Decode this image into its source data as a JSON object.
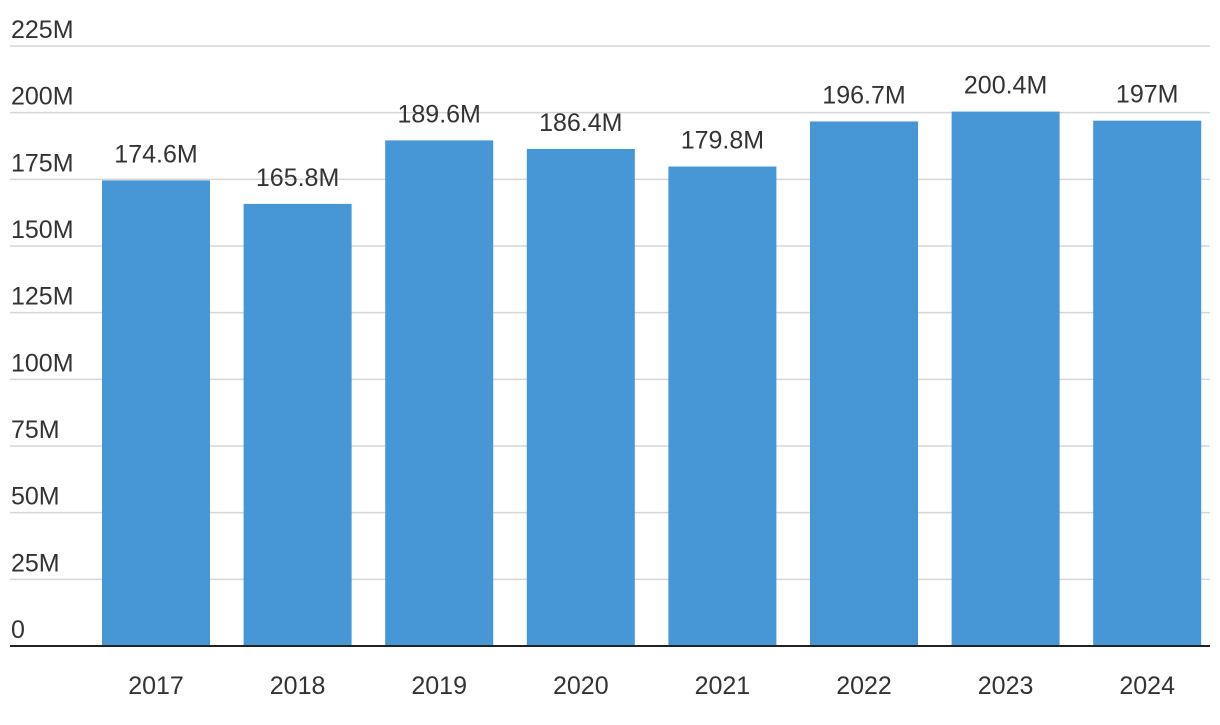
{
  "chart_data": {
    "type": "bar",
    "title": "",
    "xlabel": "",
    "ylabel": "",
    "categories": [
      "2017",
      "2018",
      "2019",
      "2020",
      "2021",
      "2022",
      "2023",
      "2024"
    ],
    "values": [
      174.6,
      165.8,
      189.6,
      186.4,
      179.8,
      196.7,
      200.4,
      197
    ],
    "value_labels": [
      "174.6M",
      "165.8M",
      "189.6M",
      "186.4M",
      "179.8M",
      "196.7M",
      "200.4M",
      "197M"
    ],
    "unit": "M",
    "ylim": [
      0,
      225
    ],
    "y_ticks": [
      0,
      25,
      50,
      75,
      100,
      125,
      150,
      175,
      200,
      225
    ],
    "y_tick_labels": [
      "0",
      "25M",
      "50M",
      "75M",
      "100M",
      "125M",
      "150M",
      "175M",
      "200M",
      "225M"
    ],
    "grid": true,
    "legend": "none",
    "colors": {
      "bar": "#4796d6",
      "grid": "#d6d6d6",
      "axis": "#222222",
      "text": "#333333"
    }
  }
}
